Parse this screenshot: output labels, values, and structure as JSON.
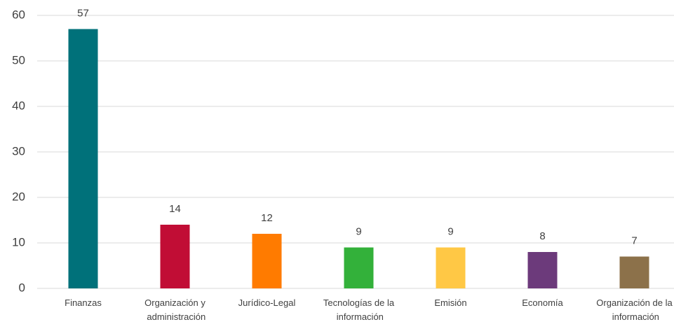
{
  "chart_data": {
    "type": "bar",
    "categories": [
      "Finanzas",
      "Organización y administración",
      "Jurídico-Legal",
      "Tecnologías de la información",
      "Emisión",
      "Economía",
      "Organización de la información"
    ],
    "values": [
      57,
      14,
      12,
      9,
      9,
      8,
      7
    ],
    "colors": [
      "#00717a",
      "#c10d35",
      "#ff7b00",
      "#33b13a",
      "#ffc845",
      "#6c3a7b",
      "#8c714a"
    ],
    "ylim": [
      0,
      60
    ],
    "yticks": [
      0,
      10,
      20,
      30,
      40,
      50,
      60
    ],
    "grid": true
  }
}
